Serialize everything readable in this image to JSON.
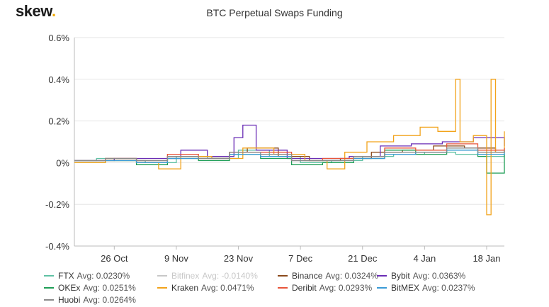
{
  "brand": {
    "name": "skew",
    "dot": "."
  },
  "chart_data": {
    "type": "line",
    "title": "BTC Perpetual Swaps Funding",
    "xlabel": "",
    "ylabel": "",
    "x_start": "2020-10-17",
    "x_end": "2021-01-22",
    "x_ticks": [
      {
        "date": "2020-10-26",
        "label": "26 Oct"
      },
      {
        "date": "2020-11-09",
        "label": "9 Nov"
      },
      {
        "date": "2020-11-23",
        "label": "23 Nov"
      },
      {
        "date": "2020-12-07",
        "label": "7 Dec"
      },
      {
        "date": "2020-12-21",
        "label": "21 Dec"
      },
      {
        "date": "2021-01-04",
        "label": "4 Jan"
      },
      {
        "date": "2021-01-18",
        "label": "18 Jan"
      }
    ],
    "ylim": [
      -0.4,
      0.6
    ],
    "y_ticks": [
      {
        "value": 0.6,
        "label": "0.6%"
      },
      {
        "value": 0.4,
        "label": "0.4%"
      },
      {
        "value": 0.2,
        "label": "0.2%"
      },
      {
        "value": 0.0,
        "label": "0%"
      },
      {
        "value": -0.2,
        "label": "-0.2%"
      },
      {
        "value": -0.4,
        "label": "-0.4%"
      }
    ],
    "grid": true,
    "legend_position": "bottom",
    "series": [
      {
        "name": "FTX",
        "avg_label": "Avg: 0.0230%",
        "color": "#5fc1a4",
        "hidden": false,
        "points": [
          [
            "2020-10-17",
            0.01
          ],
          [
            "2020-10-22",
            0.02
          ],
          [
            "2020-10-26",
            0.01
          ],
          [
            "2020-11-02",
            0.0
          ],
          [
            "2020-11-09",
            0.03
          ],
          [
            "2020-11-16",
            0.02
          ],
          [
            "2020-11-23",
            0.06
          ],
          [
            "2020-11-30",
            0.03
          ],
          [
            "2020-12-07",
            0.0
          ],
          [
            "2020-12-14",
            0.01
          ],
          [
            "2020-12-21",
            0.03
          ],
          [
            "2020-12-28",
            0.04
          ],
          [
            "2021-01-04",
            0.05
          ],
          [
            "2021-01-11",
            0.04
          ],
          [
            "2021-01-18",
            0.03
          ],
          [
            "2021-01-22",
            0.05
          ]
        ]
      },
      {
        "name": "Bitfinex",
        "avg_label": "Avg: -0.0140%",
        "color": "#c8c8c8",
        "hidden": true,
        "points": []
      },
      {
        "name": "Binance",
        "avg_label": "Avg: 0.0324%",
        "color": "#8b4a1c",
        "hidden": false,
        "points": [
          [
            "2020-10-17",
            0.01
          ],
          [
            "2020-10-24",
            0.02
          ],
          [
            "2020-10-31",
            0.01
          ],
          [
            "2020-11-07",
            0.03
          ],
          [
            "2020-11-14",
            0.03
          ],
          [
            "2020-11-21",
            0.05
          ],
          [
            "2020-11-25",
            0.07
          ],
          [
            "2020-12-02",
            0.03
          ],
          [
            "2020-12-09",
            0.01
          ],
          [
            "2020-12-16",
            0.02
          ],
          [
            "2020-12-23",
            0.05
          ],
          [
            "2020-12-30",
            0.06
          ],
          [
            "2021-01-06",
            0.08
          ],
          [
            "2021-01-13",
            0.07
          ],
          [
            "2021-01-20",
            0.05
          ],
          [
            "2021-01-22",
            0.06
          ]
        ]
      },
      {
        "name": "Bybit",
        "avg_label": "Avg: 0.0363%",
        "color": "#6a2db5",
        "hidden": false,
        "points": [
          [
            "2020-10-17",
            0.01
          ],
          [
            "2020-10-26",
            0.02
          ],
          [
            "2020-11-05",
            0.02
          ],
          [
            "2020-11-10",
            0.06
          ],
          [
            "2020-11-16",
            0.03
          ],
          [
            "2020-11-22",
            0.12
          ],
          [
            "2020-11-24",
            0.18
          ],
          [
            "2020-11-27",
            0.06
          ],
          [
            "2020-12-04",
            0.02
          ],
          [
            "2020-12-11",
            0.02
          ],
          [
            "2020-12-18",
            0.03
          ],
          [
            "2020-12-25",
            0.08
          ],
          [
            "2021-01-01",
            0.09
          ],
          [
            "2021-01-08",
            0.1
          ],
          [
            "2021-01-15",
            0.12
          ],
          [
            "2021-01-22",
            0.08
          ]
        ]
      },
      {
        "name": "OKEx",
        "avg_label": "Avg: 0.0251%",
        "color": "#1e9e56",
        "hidden": false,
        "points": [
          [
            "2020-10-17",
            0.0
          ],
          [
            "2020-10-24",
            0.01
          ],
          [
            "2020-10-31",
            -0.01
          ],
          [
            "2020-11-07",
            0.02
          ],
          [
            "2020-11-14",
            0.01
          ],
          [
            "2020-11-21",
            0.04
          ],
          [
            "2020-11-28",
            0.02
          ],
          [
            "2020-12-05",
            -0.01
          ],
          [
            "2020-12-12",
            0.0
          ],
          [
            "2020-12-19",
            0.02
          ],
          [
            "2020-12-26",
            0.06
          ],
          [
            "2021-01-02",
            0.04
          ],
          [
            "2021-01-09",
            0.06
          ],
          [
            "2021-01-16",
            0.03
          ],
          [
            "2021-01-18",
            -0.05
          ],
          [
            "2021-01-22",
            0.04
          ]
        ]
      },
      {
        "name": "Kraken",
        "avg_label": "Avg: 0.0471%",
        "color": "#f2a31b",
        "hidden": false,
        "points": [
          [
            "2020-10-17",
            0.0
          ],
          [
            "2020-10-24",
            0.01
          ],
          [
            "2020-10-31",
            0.0
          ],
          [
            "2020-11-05",
            -0.03
          ],
          [
            "2020-11-10",
            0.03
          ],
          [
            "2020-11-17",
            0.02
          ],
          [
            "2020-11-24",
            0.07
          ],
          [
            "2020-12-01",
            0.04
          ],
          [
            "2020-12-08",
            0.01
          ],
          [
            "2020-12-13",
            -0.03
          ],
          [
            "2020-12-17",
            0.05
          ],
          [
            "2020-12-22",
            0.1
          ],
          [
            "2020-12-28",
            0.13
          ],
          [
            "2021-01-03",
            0.17
          ],
          [
            "2021-01-07",
            0.15
          ],
          [
            "2021-01-11",
            0.4
          ],
          [
            "2021-01-12",
            0.1
          ],
          [
            "2021-01-15",
            0.13
          ],
          [
            "2021-01-18",
            -0.25
          ],
          [
            "2021-01-19",
            0.4
          ],
          [
            "2021-01-20",
            0.05
          ],
          [
            "2021-01-22",
            0.15
          ]
        ]
      },
      {
        "name": "Deribit",
        "avg_label": "Avg: 0.0293%",
        "color": "#e8553a",
        "hidden": false,
        "points": [
          [
            "2020-10-17",
            0.01
          ],
          [
            "2020-10-24",
            0.02
          ],
          [
            "2020-10-31",
            0.0
          ],
          [
            "2020-11-07",
            0.04
          ],
          [
            "2020-11-14",
            0.02
          ],
          [
            "2020-11-21",
            0.05
          ],
          [
            "2020-11-28",
            0.05
          ],
          [
            "2020-12-05",
            0.01
          ],
          [
            "2020-12-12",
            0.02
          ],
          [
            "2020-12-19",
            0.03
          ],
          [
            "2020-12-26",
            0.07
          ],
          [
            "2021-01-02",
            0.06
          ],
          [
            "2021-01-09",
            0.09
          ],
          [
            "2021-01-16",
            0.06
          ],
          [
            "2021-01-22",
            0.07
          ]
        ]
      },
      {
        "name": "BitMEX",
        "avg_label": "Avg: 0.0237%",
        "color": "#3b9bd6",
        "hidden": false,
        "points": [
          [
            "2020-10-17",
            0.01
          ],
          [
            "2020-10-24",
            0.01
          ],
          [
            "2020-10-31",
            0.0
          ],
          [
            "2020-11-07",
            0.02
          ],
          [
            "2020-11-14",
            0.02
          ],
          [
            "2020-11-21",
            0.04
          ],
          [
            "2020-11-28",
            0.03
          ],
          [
            "2020-12-05",
            0.01
          ],
          [
            "2020-12-12",
            0.01
          ],
          [
            "2020-12-19",
            0.02
          ],
          [
            "2020-12-26",
            0.04
          ],
          [
            "2021-01-02",
            0.05
          ],
          [
            "2021-01-09",
            0.06
          ],
          [
            "2021-01-16",
            0.04
          ],
          [
            "2021-01-22",
            0.05
          ]
        ]
      },
      {
        "name": "Huobi",
        "avg_label": "Avg: 0.0264%",
        "color": "#8a8a8a",
        "hidden": false,
        "points": [
          [
            "2020-10-17",
            0.01
          ],
          [
            "2020-10-24",
            0.02
          ],
          [
            "2020-10-31",
            0.01
          ],
          [
            "2020-11-07",
            0.03
          ],
          [
            "2020-11-14",
            0.02
          ],
          [
            "2020-11-21",
            0.05
          ],
          [
            "2020-11-28",
            0.04
          ],
          [
            "2020-12-05",
            0.01
          ],
          [
            "2020-12-12",
            0.01
          ],
          [
            "2020-12-19",
            0.03
          ],
          [
            "2020-12-26",
            0.05
          ],
          [
            "2021-01-02",
            0.05
          ],
          [
            "2021-01-09",
            0.07
          ],
          [
            "2021-01-16",
            0.05
          ],
          [
            "2021-01-22",
            0.06
          ]
        ]
      }
    ]
  }
}
